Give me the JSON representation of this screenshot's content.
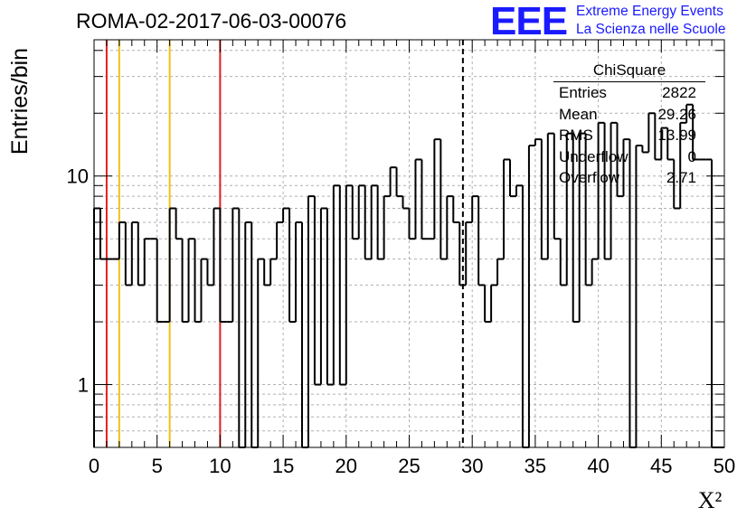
{
  "header": {
    "title": "ROMA-02-2017-06-03-00076"
  },
  "logo": {
    "mark": "EEE",
    "line1": "Extreme Energy Events",
    "line2": "La Scienza nelle Scuole",
    "color": "#1a1aff"
  },
  "stats": {
    "title": "ChiSquare",
    "rows": [
      {
        "label": "Entries",
        "value": "2822"
      },
      {
        "label": "Mean",
        "value": "29.26"
      },
      {
        "label": "RMS",
        "value": "13.99"
      },
      {
        "label": "Underflow",
        "value": "0"
      },
      {
        "label": "Overflow",
        "value": "2.71"
      }
    ]
  },
  "chart_data": {
    "type": "histogram",
    "title": "ROMA-02-2017-06-03-00076",
    "xlabel": "X²",
    "ylabel": "Entries/bin",
    "xlim": [
      0,
      50
    ],
    "ylim": [
      0.5,
      45
    ],
    "yscale": "log",
    "grid": true,
    "bin_width": 0.5,
    "x_ticks": [
      "0",
      "5",
      "10",
      "15",
      "20",
      "25",
      "30",
      "35",
      "40",
      "45",
      "50"
    ],
    "y_ticks": [
      {
        "value": 1,
        "label": "1"
      },
      {
        "value": 10,
        "label": "10"
      }
    ],
    "values": [
      7,
      4,
      4,
      4,
      6,
      3,
      6,
      3,
      5,
      5,
      2,
      2,
      7,
      5,
      2,
      5,
      2,
      4,
      3,
      7,
      2,
      2,
      7,
      0,
      6,
      0,
      4,
      3,
      4,
      6,
      7,
      2,
      6,
      0,
      8,
      1,
      7,
      1,
      9,
      1,
      9,
      5,
      9,
      4,
      9,
      4,
      8,
      11,
      8,
      7,
      5,
      12,
      5,
      5,
      15,
      4,
      8,
      6,
      3,
      6,
      8,
      3,
      2,
      3,
      4,
      12,
      8,
      9,
      0,
      14,
      15,
      4,
      16,
      5,
      3,
      16,
      2,
      16,
      3,
      4,
      18,
      4,
      18,
      8,
      15,
      0,
      14,
      13,
      20,
      12,
      17,
      12,
      7,
      18,
      22,
      12,
      12,
      12,
      0,
      0
    ],
    "reference_lines": [
      {
        "x": 1,
        "color": "#e02020",
        "style": "solid"
      },
      {
        "x": 2,
        "color": "#f0c020",
        "style": "solid"
      },
      {
        "x": 6,
        "color": "#f0c020",
        "style": "solid"
      },
      {
        "x": 10,
        "color": "#e02020",
        "style": "solid"
      },
      {
        "x": 29.26,
        "color": "#000000",
        "style": "dashed"
      }
    ]
  }
}
